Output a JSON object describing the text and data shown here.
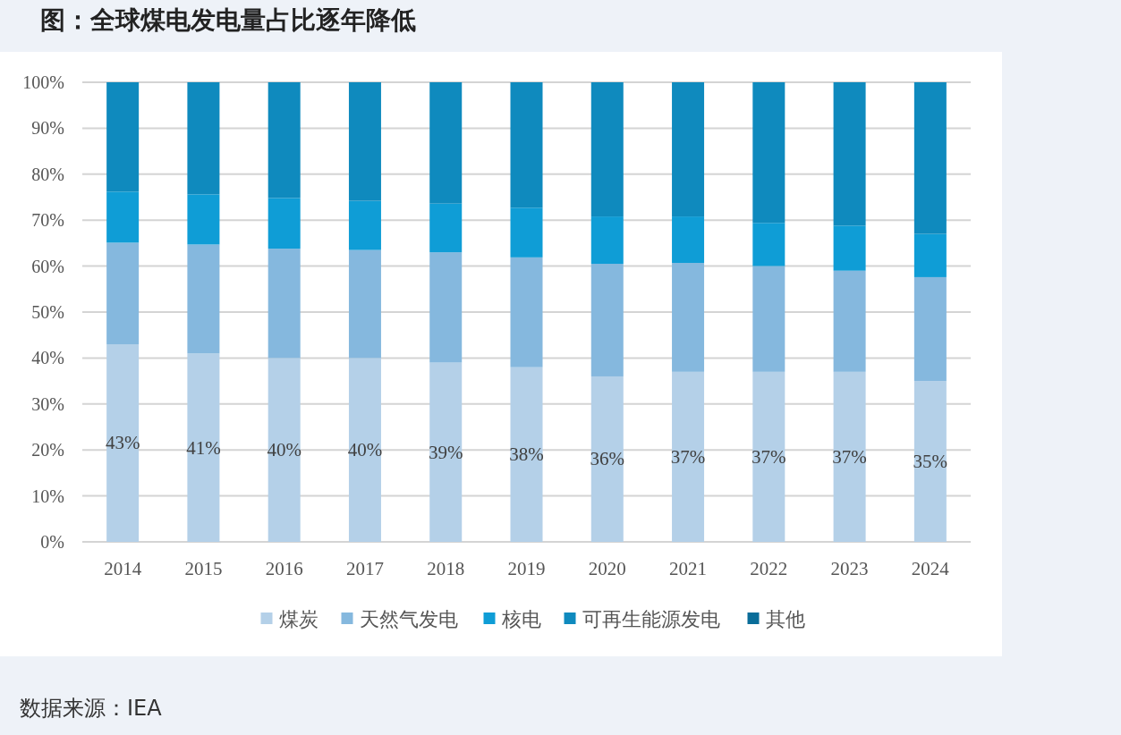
{
  "chart_data": {
    "type": "bar",
    "stacked": true,
    "title": "图：全球煤电发电量占比逐年降低",
    "categories": [
      "2014",
      "2015",
      "2016",
      "2017",
      "2018",
      "2019",
      "2020",
      "2021",
      "2022",
      "2023",
      "2024"
    ],
    "series": [
      {
        "name": "煤炭",
        "color": "#b4d0e8",
        "values": [
          43,
          41,
          40,
          40,
          39,
          38,
          36,
          37,
          37,
          37,
          35
        ],
        "value_labels": [
          "43%",
          "41%",
          "40%",
          "40%",
          "39%",
          "38%",
          "36%",
          "37%",
          "37%",
          "37%",
          "35%"
        ]
      },
      {
        "name": "天然气发电",
        "color": "#85b8de",
        "values": [
          22.1,
          23.7,
          23.8,
          23.5,
          24,
          23.9,
          24.5,
          23.7,
          23,
          22,
          22.6
        ]
      },
      {
        "name": "核电",
        "color": "#0f9dd6",
        "values": [
          11.1,
          10.9,
          11,
          10.7,
          10.6,
          10.8,
          10.3,
          10.1,
          9.4,
          9.8,
          9.4
        ]
      },
      {
        "name": "可再生能源发电",
        "color": "#0f8abe",
        "values": [
          23.8,
          24.4,
          25.2,
          25.8,
          26.4,
          27.3,
          29.2,
          29.2,
          30.6,
          31.2,
          33
        ]
      },
      {
        "name": "其他",
        "color": "#0a6d99",
        "values": [
          0,
          0,
          0,
          0,
          0,
          0,
          0,
          0,
          0,
          0,
          0
        ]
      }
    ],
    "ylim": [
      0,
      100
    ],
    "yticks": [
      {
        "value": 0,
        "label": "0%"
      },
      {
        "value": 10,
        "label": "10%"
      },
      {
        "value": 20,
        "label": "20%"
      },
      {
        "value": 30,
        "label": "30%"
      },
      {
        "value": 40,
        "label": "40%"
      },
      {
        "value": 50,
        "label": "50%"
      },
      {
        "value": 60,
        "label": "60%"
      },
      {
        "value": 70,
        "label": "70%"
      },
      {
        "value": 80,
        "label": "80%"
      },
      {
        "value": 90,
        "label": "90%"
      },
      {
        "value": 100,
        "label": "100%"
      }
    ],
    "grid": "y",
    "legend": "bottom",
    "annotations": [
      "数据来源：IEA"
    ]
  }
}
